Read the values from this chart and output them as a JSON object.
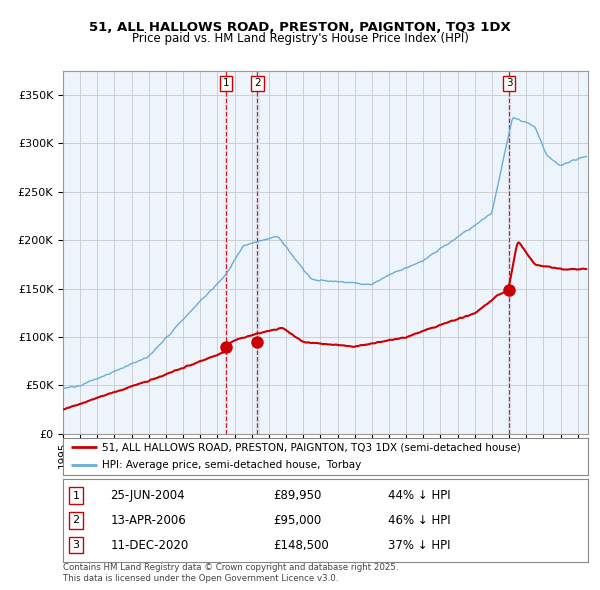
{
  "title_line1": "51, ALL HALLOWS ROAD, PRESTON, PAIGNTON, TQ3 1DX",
  "title_line2": "Price paid vs. HM Land Registry's House Price Index (HPI)",
  "ylim": [
    0,
    375000
  ],
  "yticks": [
    0,
    50000,
    100000,
    150000,
    200000,
    250000,
    300000,
    350000
  ],
  "legend_line1": "51, ALL HALLOWS ROAD, PRESTON, PAIGNTON, TQ3 1DX (semi-detached house)",
  "legend_line2": "HPI: Average price, semi-detached house,  Torbay",
  "transaction1_date": "25-JUN-2004",
  "transaction1_price": "£89,950",
  "transaction1_hpi": "44% ↓ HPI",
  "transaction2_date": "13-APR-2006",
  "transaction2_price": "£95,000",
  "transaction2_hpi": "46% ↓ HPI",
  "transaction3_date": "11-DEC-2020",
  "transaction3_price": "£148,500",
  "transaction3_hpi": "37% ↓ HPI",
  "footer_line1": "Contains HM Land Registry data © Crown copyright and database right 2025.",
  "footer_line2": "This data is licensed under the Open Government Licence v3.0.",
  "hpi_color": "#6aaed6",
  "price_color": "#cc0000",
  "bg_plot": "#eef4fb",
  "background_color": "#ffffff",
  "grid_color": "#c8c8c8"
}
